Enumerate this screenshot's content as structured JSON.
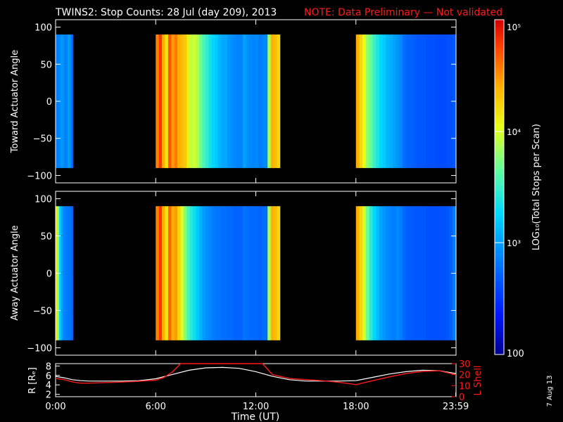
{
  "title": {
    "main": "TWINS2: Stop Counts: 28 Jul (day 209), 2013",
    "note": "NOTE: Data Preliminary — Not validated"
  },
  "colorbar": {
    "label": "LOG₁₀(Total Stops per Scan)",
    "tick_100": "100",
    "tick_1e3": "10³",
    "tick_1e4": "10⁴",
    "tick_1e5": "10⁵"
  },
  "date_stamp": "7 Aug 13",
  "colors": {
    "background": "#000000",
    "axes": "#ffffff",
    "lshell": "#ff1a1a",
    "radius": "#ffffff"
  },
  "chart_data": [
    {
      "type": "heatmap",
      "name": "toward",
      "ylabel": "Toward Actuator Angle",
      "ylim": [
        -110,
        110
      ],
      "yticks": [
        "100",
        "50",
        "0",
        "−50",
        "−100"
      ],
      "ytick_values": [
        100,
        50,
        0,
        -50,
        -100
      ],
      "angle_range": [
        -90,
        90
      ],
      "xlim_hours": [
        0,
        24
      ],
      "segments": [
        {
          "start": 0.0,
          "end": 1.05,
          "columns": [
            0.28,
            0.29,
            0.3,
            0.33,
            0.31,
            0.28,
            0.3,
            0.34,
            0.3,
            0.24
          ]
        },
        {
          "start": 6.0,
          "end": 13.45,
          "columns": [
            0.85,
            0.93,
            0.8,
            0.72,
            0.9,
            0.82,
            0.86,
            0.8,
            0.78,
            0.76,
            0.7,
            0.64,
            0.66,
            0.62,
            0.56,
            0.52,
            0.49,
            0.45,
            0.42,
            0.4,
            0.37,
            0.35,
            0.35,
            0.32,
            0.31,
            0.3,
            0.29,
            0.29,
            0.34,
            0.31,
            0.3,
            0.29,
            0.3,
            0.28,
            0.29,
            0.3,
            0.62,
            0.8,
            0.78,
            0.74
          ]
        },
        {
          "start": 18.0,
          "end": 23.99,
          "columns": [
            0.8,
            0.74,
            0.68,
            0.6,
            0.55,
            0.5,
            0.46,
            0.42,
            0.4,
            0.37,
            0.36,
            0.34,
            0.32,
            0.3,
            0.26,
            0.24,
            0.24,
            0.23,
            0.22,
            0.22,
            0.22,
            0.21,
            0.21,
            0.21,
            0.2,
            0.2,
            0.2,
            0.21,
            0.21,
            0.22
          ]
        }
      ]
    },
    {
      "type": "heatmap",
      "name": "away",
      "ylabel": "Away Actuator Angle",
      "ylim": [
        -110,
        110
      ],
      "yticks": [
        "100",
        "50",
        "0",
        "−50",
        "−100"
      ],
      "ytick_values": [
        100,
        50,
        0,
        -50,
        -100
      ],
      "angle_range": [
        -90,
        90
      ],
      "xlim_hours": [
        0,
        24
      ],
      "segments": [
        {
          "start": 0.0,
          "end": 1.05,
          "columns": [
            0.72,
            0.6,
            0.42,
            0.33,
            0.3,
            0.29,
            0.28,
            0.27,
            0.26,
            0.24
          ]
        },
        {
          "start": 6.0,
          "end": 13.45,
          "columns": [
            0.85,
            0.93,
            0.8,
            0.72,
            0.88,
            0.8,
            0.82,
            0.74,
            0.66,
            0.58,
            0.52,
            0.47,
            0.44,
            0.4,
            0.36,
            0.33,
            0.31,
            0.3,
            0.28,
            0.27,
            0.27,
            0.26,
            0.26,
            0.25,
            0.25,
            0.24,
            0.24,
            0.24,
            0.27,
            0.26,
            0.25,
            0.25,
            0.25,
            0.24,
            0.25,
            0.26,
            0.62,
            0.8,
            0.78,
            0.74
          ]
        },
        {
          "start": 18.0,
          "end": 23.99,
          "columns": [
            0.8,
            0.74,
            0.66,
            0.56,
            0.48,
            0.42,
            0.38,
            0.34,
            0.32,
            0.3,
            0.29,
            0.28,
            0.3,
            0.28,
            0.25,
            0.23,
            0.23,
            0.22,
            0.22,
            0.22,
            0.22,
            0.21,
            0.21,
            0.21,
            0.21,
            0.21,
            0.21,
            0.22,
            0.24,
            0.28
          ]
        }
      ]
    },
    {
      "type": "line",
      "name": "ephemeris",
      "xlabel": "Time (UT)",
      "xticks": [
        "0:00",
        "6:00",
        "12:00",
        "18:00",
        "23:59"
      ],
      "xtick_values": [
        0,
        6,
        12,
        18,
        23.983
      ],
      "ylabel_left": "R [Rₑ]",
      "ylim_left": [
        1.5,
        8.5
      ],
      "yticks_left": [
        "8",
        "6",
        "4",
        "2"
      ],
      "ytick_values_left": [
        8,
        6,
        4,
        2
      ],
      "ylabel_right": "L Shell",
      "ylim_right": [
        0,
        30
      ],
      "yticks_right": [
        "30",
        "20",
        "10",
        "0"
      ],
      "ytick_values_right": [
        30,
        20,
        10,
        0
      ],
      "series": [
        {
          "name": "R",
          "axis": "left",
          "x": [
            0,
            0.5,
            1,
            1.5,
            2,
            3,
            4,
            5,
            6,
            7,
            8,
            9,
            10,
            11,
            12,
            13,
            14,
            15,
            16,
            17,
            18,
            19,
            20,
            21,
            22,
            23,
            24
          ],
          "y": [
            5.8,
            5.5,
            5.1,
            4.9,
            4.8,
            4.8,
            4.8,
            4.9,
            5.3,
            6.2,
            7.1,
            7.6,
            7.7,
            7.5,
            6.8,
            5.8,
            5.1,
            4.8,
            4.8,
            4.8,
            4.9,
            5.6,
            6.3,
            6.8,
            7.1,
            7.0,
            6.4
          ]
        },
        {
          "name": "L Shell",
          "axis": "right",
          "x": [
            0,
            0.5,
            1,
            1.5,
            2,
            3,
            4,
            5,
            6,
            6.5,
            7,
            7.5,
            12.4,
            13,
            14,
            15,
            16,
            17,
            18,
            19,
            20,
            21,
            22,
            23,
            24
          ],
          "y": [
            16.5,
            15.5,
            13.5,
            12.3,
            12.3,
            12.8,
            13.3,
            14.0,
            15.0,
            17.5,
            22.5,
            31,
            31,
            20.0,
            16.5,
            15.5,
            14.5,
            13.0,
            11.0,
            14.5,
            18.0,
            21.0,
            23.0,
            23.5,
            20.0
          ]
        }
      ]
    }
  ]
}
